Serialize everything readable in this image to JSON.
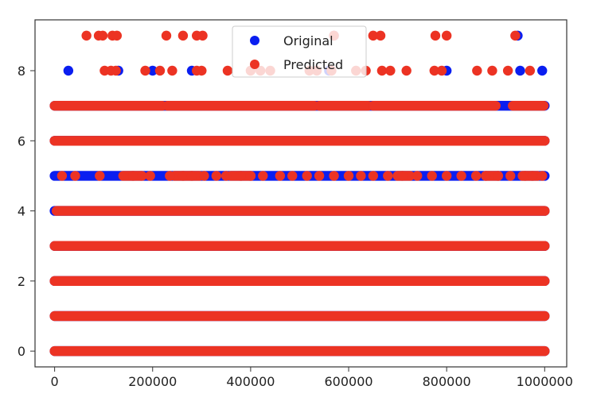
{
  "chart_data": {
    "type": "scatter",
    "title": "",
    "xlabel": "",
    "ylabel": "",
    "xlim": [
      -40000,
      1045000
    ],
    "ylim": [
      -0.45,
      9.45
    ],
    "x_ticks": [
      0,
      200000,
      400000,
      600000,
      800000,
      1000000
    ],
    "x_tick_labels": [
      "0",
      "200000",
      "400000",
      "600000",
      "800000",
      "1000000"
    ],
    "y_ticks": [
      0,
      2,
      4,
      6,
      8
    ],
    "y_tick_labels": [
      "0",
      "2",
      "4",
      "6",
      "8"
    ],
    "grid": false,
    "legend_position": "top-center",
    "band_x_range": [
      0,
      1000000
    ],
    "series": [
      {
        "name": "Original",
        "color": "#0a1ef0",
        "bands": [
          {
            "y": 0,
            "x_start": 0,
            "x_end": 1000000
          },
          {
            "y": 1,
            "x_start": 0,
            "x_end": 1000000
          },
          {
            "y": 2,
            "x_start": 0,
            "x_end": 1000000
          },
          {
            "y": 3,
            "x_start": 0,
            "x_end": 1000000
          },
          {
            "y": 4,
            "x_start": 0,
            "x_end": 1000000
          },
          {
            "y": 5,
            "x_start": 0,
            "x_end": 1000000
          },
          {
            "y": 6,
            "x_start": 0,
            "x_end": 1000000
          },
          {
            "y": 7,
            "x_start": 0,
            "x_end": 1000000
          }
        ],
        "points": [
          {
            "x": 28000,
            "y": 8
          },
          {
            "x": 130000,
            "y": 8
          },
          {
            "x": 200000,
            "y": 8
          },
          {
            "x": 280000,
            "y": 8
          },
          {
            "x": 560000,
            "y": 8
          },
          {
            "x": 800000,
            "y": 8
          },
          {
            "x": 950000,
            "y": 8
          },
          {
            "x": 995000,
            "y": 8
          },
          {
            "x": 945000,
            "y": 9
          },
          {
            "x": 570000,
            "y": 9
          }
        ]
      },
      {
        "name": "Predicted",
        "color": "#ec3323",
        "bands": [
          {
            "y": 0,
            "x_start": 0,
            "x_end": 1000000
          },
          {
            "y": 1,
            "x_start": 0,
            "x_end": 1000000
          },
          {
            "y": 2,
            "x_start": 0,
            "x_end": 1000000
          },
          {
            "y": 3,
            "x_start": 0,
            "x_end": 1000000
          },
          {
            "y": 4,
            "x_start": 4000,
            "x_end": 1000000
          },
          {
            "y": 6,
            "x_start": 0,
            "x_end": 1000000
          }
        ],
        "points": [
          {
            "x": 65000,
            "y": 9
          },
          {
            "x": 90000,
            "y": 9
          },
          {
            "x": 98000,
            "y": 9
          },
          {
            "x": 118000,
            "y": 9
          },
          {
            "x": 127000,
            "y": 9
          },
          {
            "x": 228000,
            "y": 9
          },
          {
            "x": 262000,
            "y": 9
          },
          {
            "x": 290000,
            "y": 9
          },
          {
            "x": 302000,
            "y": 9
          },
          {
            "x": 570000,
            "y": 9
          },
          {
            "x": 650000,
            "y": 9
          },
          {
            "x": 665000,
            "y": 9
          },
          {
            "x": 777000,
            "y": 9
          },
          {
            "x": 800000,
            "y": 9
          },
          {
            "x": 940000,
            "y": 9
          },
          {
            "x": 102000,
            "y": 8
          },
          {
            "x": 115000,
            "y": 8
          },
          {
            "x": 125000,
            "y": 8
          },
          {
            "x": 185000,
            "y": 8
          },
          {
            "x": 215000,
            "y": 8
          },
          {
            "x": 240000,
            "y": 8
          },
          {
            "x": 290000,
            "y": 8
          },
          {
            "x": 300000,
            "y": 8
          },
          {
            "x": 353000,
            "y": 8
          },
          {
            "x": 400000,
            "y": 8
          },
          {
            "x": 420000,
            "y": 8
          },
          {
            "x": 440000,
            "y": 8
          },
          {
            "x": 520000,
            "y": 8
          },
          {
            "x": 535000,
            "y": 8
          },
          {
            "x": 565000,
            "y": 8
          },
          {
            "x": 615000,
            "y": 8
          },
          {
            "x": 635000,
            "y": 8
          },
          {
            "x": 668000,
            "y": 8
          },
          {
            "x": 685000,
            "y": 8
          },
          {
            "x": 718000,
            "y": 8
          },
          {
            "x": 775000,
            "y": 8
          },
          {
            "x": 790000,
            "y": 8
          },
          {
            "x": 862000,
            "y": 8
          },
          {
            "x": 893000,
            "y": 8
          },
          {
            "x": 925000,
            "y": 8
          },
          {
            "x": 970000,
            "y": 8
          },
          {
            "x": 15000,
            "y": 5
          },
          {
            "x": 42000,
            "y": 5
          },
          {
            "x": 92000,
            "y": 5
          },
          {
            "x": 160000,
            "y": 5
          },
          {
            "x": 178000,
            "y": 5
          },
          {
            "x": 195000,
            "y": 5
          },
          {
            "x": 235000,
            "y": 5
          },
          {
            "x": 262000,
            "y": 5
          },
          {
            "x": 280000,
            "y": 5
          },
          {
            "x": 305000,
            "y": 5
          },
          {
            "x": 330000,
            "y": 5
          },
          {
            "x": 350000,
            "y": 5
          },
          {
            "x": 380000,
            "y": 5
          },
          {
            "x": 400000,
            "y": 5
          },
          {
            "x": 425000,
            "y": 5
          },
          {
            "x": 460000,
            "y": 5
          },
          {
            "x": 485000,
            "y": 5
          },
          {
            "x": 515000,
            "y": 5
          },
          {
            "x": 540000,
            "y": 5
          },
          {
            "x": 570000,
            "y": 5
          },
          {
            "x": 600000,
            "y": 5
          },
          {
            "x": 625000,
            "y": 5
          },
          {
            "x": 650000,
            "y": 5
          },
          {
            "x": 680000,
            "y": 5
          },
          {
            "x": 710000,
            "y": 5
          },
          {
            "x": 740000,
            "y": 5
          },
          {
            "x": 770000,
            "y": 5
          },
          {
            "x": 800000,
            "y": 5
          },
          {
            "x": 830000,
            "y": 5
          },
          {
            "x": 860000,
            "y": 5
          },
          {
            "x": 880000,
            "y": 5
          },
          {
            "x": 905000,
            "y": 5
          },
          {
            "x": 930000,
            "y": 5
          },
          {
            "x": 960000,
            "y": 5
          },
          {
            "x": 975000,
            "y": 5
          },
          {
            "x": 995000,
            "y": 5
          }
        ],
        "dense_segments": [
          {
            "y": 7,
            "x_start": 0,
            "x_end": 220000
          },
          {
            "y": 7,
            "x_start": 230000,
            "x_end": 530000
          },
          {
            "y": 7,
            "x_start": 540000,
            "x_end": 640000
          },
          {
            "y": 7,
            "x_start": 650000,
            "x_end": 900000
          },
          {
            "y": 7,
            "x_start": 935000,
            "x_end": 998000
          },
          {
            "y": 5,
            "x_start": 140000,
            "x_end": 175000
          },
          {
            "y": 5,
            "x_start": 245000,
            "x_end": 295000
          },
          {
            "y": 5,
            "x_start": 360000,
            "x_end": 400000
          },
          {
            "y": 5,
            "x_start": 700000,
            "x_end": 725000
          },
          {
            "y": 5,
            "x_start": 880000,
            "x_end": 905000
          },
          {
            "y": 5,
            "x_start": 955000,
            "x_end": 985000
          }
        ]
      }
    ]
  }
}
